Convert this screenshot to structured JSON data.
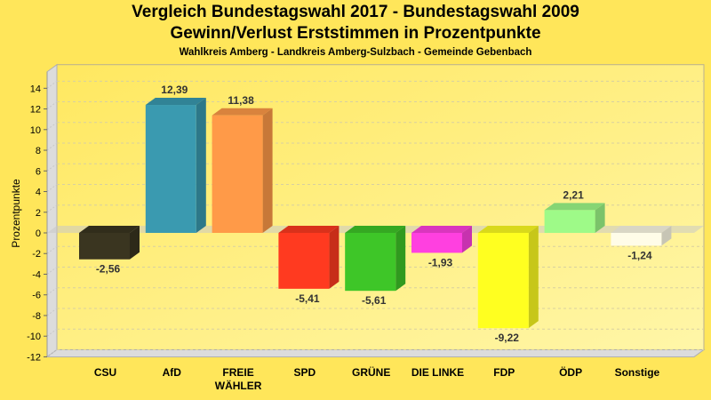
{
  "chart_data": {
    "type": "bar",
    "title": "Vergleich Bundestagswahl 2017 - Bundestagswahl 2009",
    "subtitle": "Gewinn/Verlust Erststimmen in Prozentpunkte",
    "caption": "Wahlkreis Amberg - Landkreis Amberg-Sulzbach - Gemeinde Gebenbach",
    "xlabel": "",
    "ylabel": "Prozentpunkte",
    "ylim": [
      -12,
      15
    ],
    "yticks": [
      14,
      12,
      10,
      8,
      6,
      4,
      2,
      0,
      -2,
      -4,
      -6,
      -8,
      -10,
      -12
    ],
    "grid": true,
    "categories": [
      [
        "CSU"
      ],
      [
        "AfD"
      ],
      [
        "FREIE",
        "WÄHLER"
      ],
      [
        "SPD"
      ],
      [
        "GRÜNE"
      ],
      [
        "DIE LINKE"
      ],
      [
        "FDP"
      ],
      [
        "ÖDP"
      ],
      [
        "Sonstige"
      ]
    ],
    "values": [
      -2.56,
      12.39,
      11.38,
      -5.41,
      -5.61,
      -1.93,
      -9.22,
      2.21,
      -1.24
    ],
    "value_labels": [
      "-2,56",
      "12,39",
      "11,38",
      "-5,41",
      "-5,61",
      "-1,93",
      "-9,22",
      "2,21",
      "-1,24"
    ],
    "colors": [
      "#3A3520",
      "#3A9AB0",
      "#FF9A48",
      "#FF3A20",
      "#3EC628",
      "#FF40E0",
      "#FFFF20",
      "#9EFA88",
      "#FFFCE8"
    ]
  }
}
